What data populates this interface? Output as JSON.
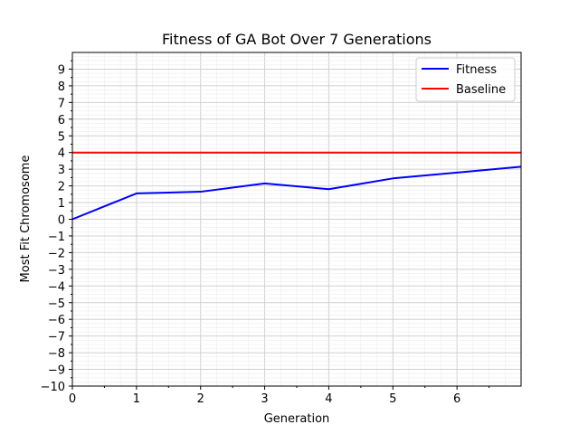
{
  "chart_data": {
    "type": "line",
    "title": "Fitness of GA Bot Over 7 Generations",
    "xlabel": "Generation",
    "ylabel": "Most Fit Chromosome",
    "xlim": [
      0,
      7
    ],
    "ylim": [
      -10,
      10
    ],
    "x_ticks": [
      "0",
      "1",
      "2",
      "3",
      "4",
      "5",
      "6"
    ],
    "y_ticks": [
      "−10",
      "−9",
      "−8",
      "−7",
      "−6",
      "−5",
      "−4",
      "−3",
      "−2",
      "−1",
      "0",
      "1",
      "2",
      "3",
      "4",
      "5",
      "6",
      "7",
      "8",
      "9"
    ],
    "grid": true,
    "legend_position": "top-right",
    "series": [
      {
        "name": "Fitness",
        "color": "#0000ff",
        "x": [
          0,
          1,
          1.5,
          2,
          3,
          4,
          5,
          6,
          7
        ],
        "y": [
          0,
          1.55,
          1.6,
          1.65,
          2.15,
          1.8,
          2.45,
          2.8,
          3.15
        ]
      },
      {
        "name": "Baseline",
        "color": "#ff0000",
        "x": [
          0,
          7
        ],
        "y": [
          4,
          4
        ]
      }
    ]
  }
}
